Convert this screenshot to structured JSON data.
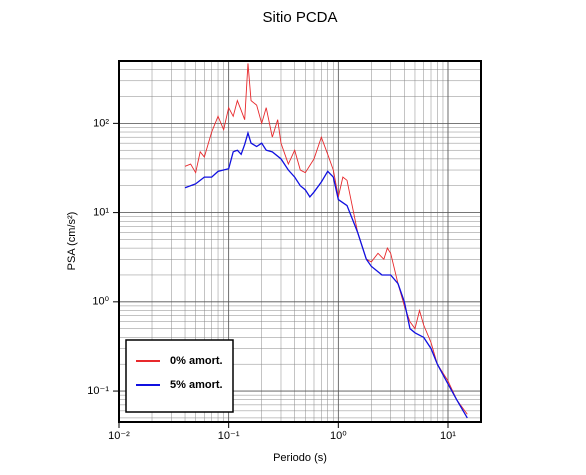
{
  "chart_data": {
    "type": "line",
    "title": "Sitio PCDA",
    "xlabel": "Periodo (s)",
    "ylabel": "PSA (cm/s²)",
    "xscale": "log",
    "yscale": "log",
    "grid": true,
    "legend": "lower left",
    "xlim": [
      0.01,
      20
    ],
    "ylim": [
      0.045,
      500
    ],
    "xticks": [
      {
        "value": 0.01,
        "label": "10⁻²"
      },
      {
        "value": 0.1,
        "label": "10⁻¹"
      },
      {
        "value": 1,
        "label": "10⁰"
      },
      {
        "value": 10,
        "label": "10¹"
      }
    ],
    "yticks": [
      {
        "value": 0.1,
        "label": "10⁻¹"
      },
      {
        "value": 1,
        "label": "10⁰"
      },
      {
        "value": 10,
        "label": "10¹"
      },
      {
        "value": 100,
        "label": "10²"
      }
    ],
    "series": [
      {
        "name": "0% amort.",
        "color": "#e8292c",
        "x": [
          0.04,
          0.045,
          0.05,
          0.055,
          0.06,
          0.07,
          0.08,
          0.09,
          0.1,
          0.11,
          0.12,
          0.13,
          0.14,
          0.15,
          0.16,
          0.18,
          0.2,
          0.22,
          0.25,
          0.28,
          0.3,
          0.35,
          0.4,
          0.45,
          0.5,
          0.6,
          0.7,
          0.8,
          0.9,
          1.0,
          1.1,
          1.2,
          1.5,
          1.8,
          2.0,
          2.3,
          2.6,
          2.8,
          3,
          3.5,
          4,
          4.5,
          5,
          5.5,
          6,
          7,
          8,
          10,
          12,
          15
        ],
        "values": [
          33,
          35,
          28,
          48,
          42,
          80,
          120,
          85,
          150,
          120,
          180,
          140,
          110,
          470,
          180,
          160,
          100,
          150,
          70,
          110,
          60,
          35,
          50,
          30,
          28,
          40,
          70,
          45,
          30,
          15,
          25,
          23,
          6,
          3,
          2.8,
          3.5,
          3,
          4,
          3.5,
          1.6,
          0.9,
          0.6,
          0.5,
          0.8,
          0.55,
          0.35,
          0.2,
          0.13,
          0.08,
          0.055
        ]
      },
      {
        "name": "5% amort.",
        "color": "#1010e0",
        "x": [
          0.04,
          0.05,
          0.06,
          0.07,
          0.08,
          0.1,
          0.11,
          0.12,
          0.13,
          0.14,
          0.15,
          0.16,
          0.18,
          0.2,
          0.22,
          0.25,
          0.3,
          0.35,
          0.4,
          0.45,
          0.5,
          0.55,
          0.6,
          0.7,
          0.8,
          0.9,
          1.0,
          1.2,
          1.5,
          1.8,
          2.0,
          2.5,
          3,
          3.5,
          4,
          4.5,
          5,
          6,
          7,
          8,
          10,
          12,
          15
        ],
        "values": [
          19,
          21,
          25,
          25,
          29,
          31,
          48,
          50,
          45,
          58,
          78,
          60,
          55,
          60,
          50,
          48,
          40,
          30,
          25,
          20,
          18,
          15,
          17,
          22,
          29,
          25,
          14,
          12,
          6,
          3,
          2.5,
          2,
          2,
          1.6,
          1.0,
          0.5,
          0.45,
          0.4,
          0.3,
          0.2,
          0.12,
          0.08,
          0.05
        ]
      }
    ]
  }
}
